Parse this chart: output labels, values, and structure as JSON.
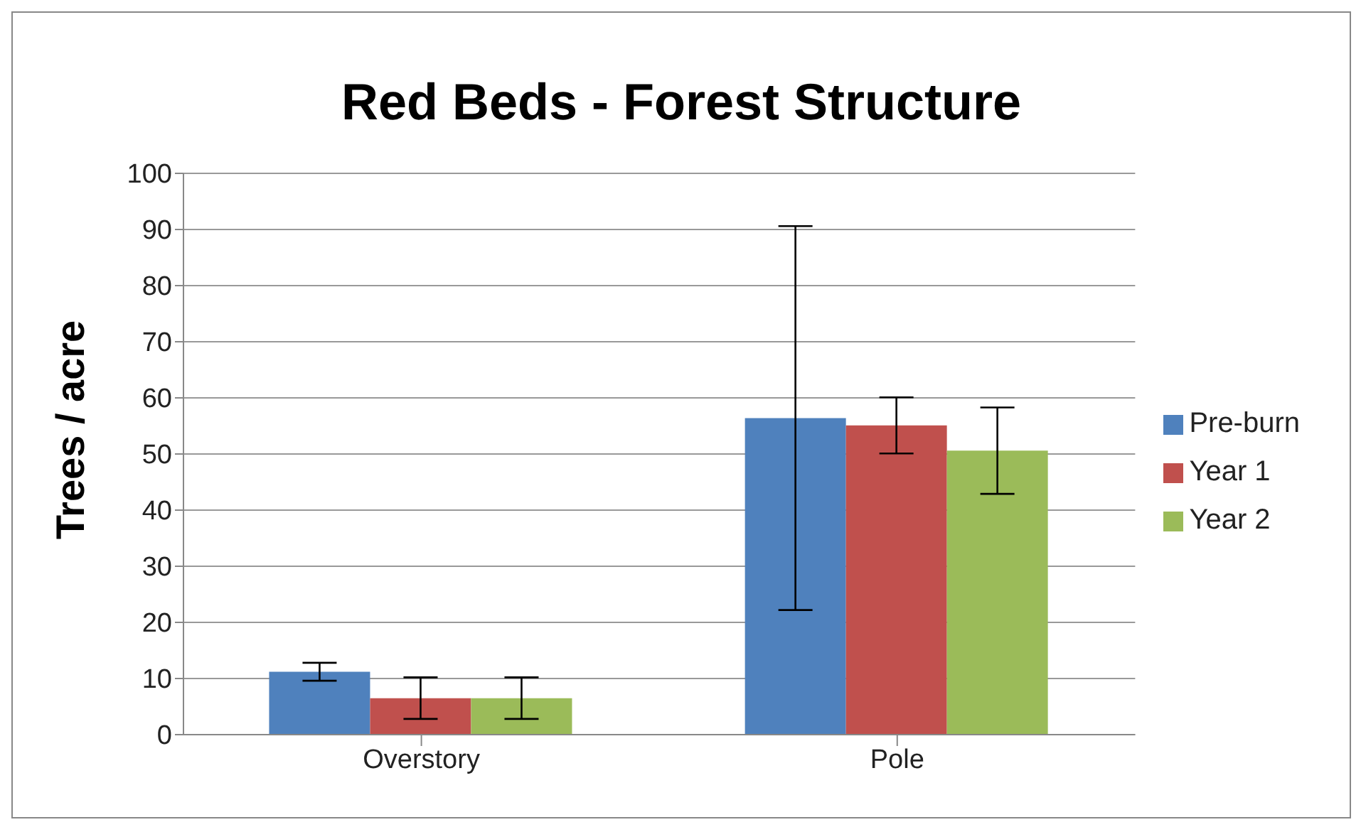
{
  "chart_data": {
    "type": "bar",
    "title": "Red Beds - Forest Structure",
    "ylabel": "Trees / acre",
    "categories": [
      "Overstory",
      "Pole"
    ],
    "series": [
      {
        "name": "Pre-burn",
        "color": "#4f81bd",
        "values": [
          11.2,
          56.4
        ],
        "errors": [
          1.6,
          34.2
        ]
      },
      {
        "name": "Year 1",
        "color": "#c0504d",
        "values": [
          6.5,
          55.1
        ],
        "errors": [
          3.7,
          5
        ]
      },
      {
        "name": "Year 2",
        "color": "#9bbb59",
        "values": [
          6.5,
          50.6
        ],
        "errors": [
          3.7,
          7.7
        ]
      }
    ],
    "ylim": [
      0,
      100
    ],
    "yticks": [
      0,
      10,
      20,
      30,
      40,
      50,
      60,
      70,
      80,
      90,
      100
    ],
    "grid": "y",
    "legend": "right"
  }
}
